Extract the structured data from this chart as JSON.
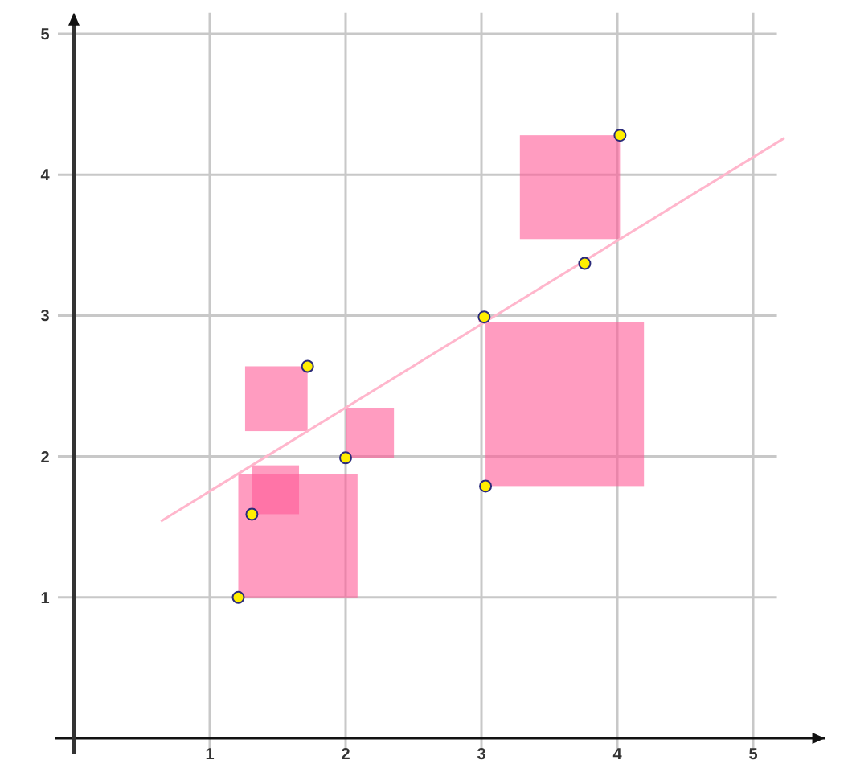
{
  "chart_data": {
    "type": "scatter",
    "xlim": [
      0,
      5.53
    ],
    "ylim": [
      0,
      5.15
    ],
    "xticks": [
      1,
      2,
      3,
      4,
      5
    ],
    "yticks": [
      1,
      2,
      3,
      4,
      5
    ],
    "grid": true,
    "marker": "circle",
    "series": [
      {
        "color": "#ffee00",
        "x": [
          1.21,
          1.31,
          1.72,
          2.0,
          3.02,
          3.03,
          3.76,
          4.02
        ],
        "values": [
          1.0,
          1.59,
          2.64,
          1.99,
          2.99,
          1.79,
          3.37,
          4.28
        ]
      },
      {
        "type": "line",
        "marker": "none",
        "color": "#ffb6cc",
        "x": [
          0.64,
          5.23
        ],
        "values": [
          1.54,
          4.26
        ]
      }
    ]
  }
}
